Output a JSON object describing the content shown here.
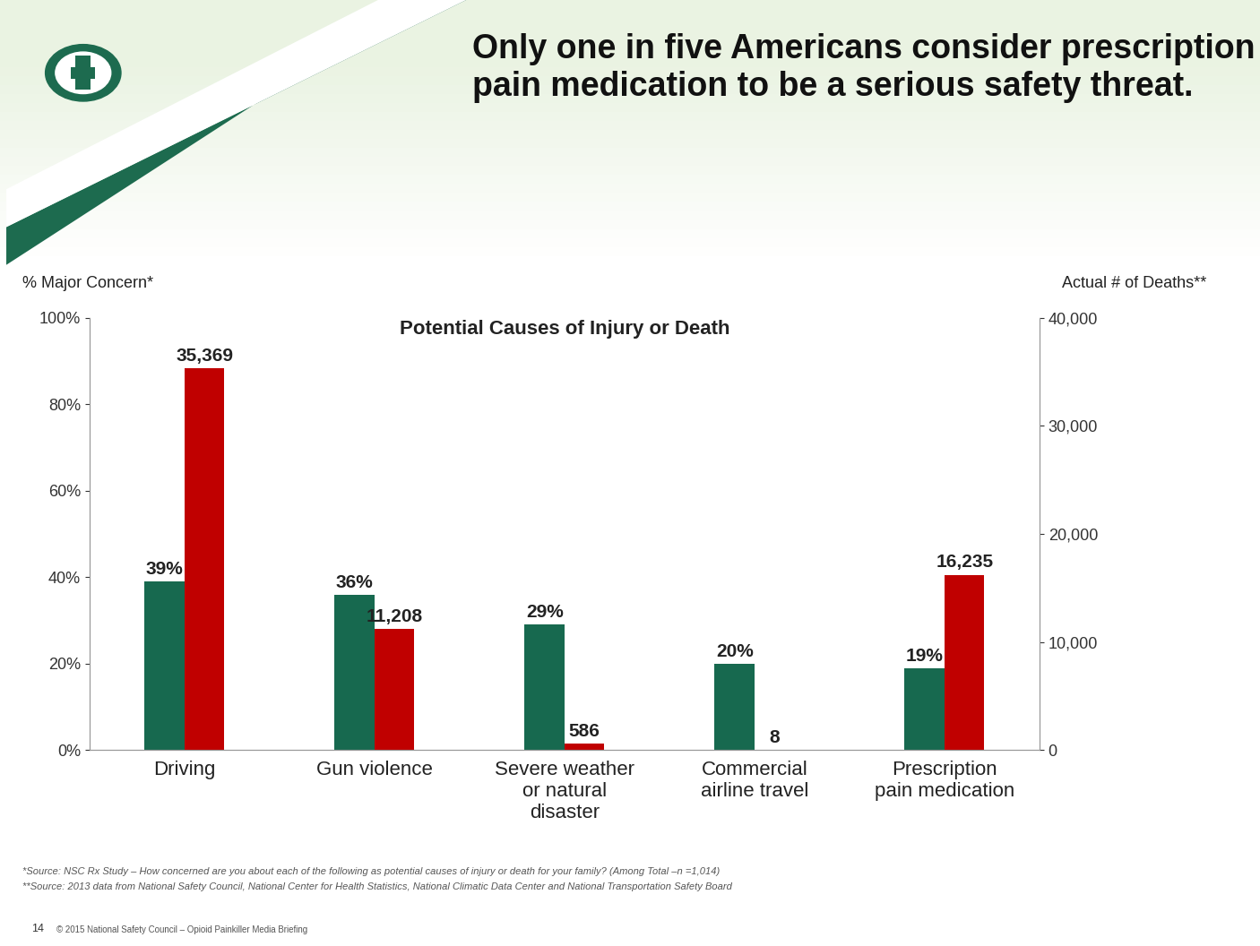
{
  "chart_data": {
    "type": "bar",
    "title": "Only one in five Americans consider prescription pain medication to be a serious safety threat.",
    "subtitle": "Potential Causes of Injury or Death",
    "y_label": "% Major Concern*",
    "y2_label": "Actual # of Deaths**",
    "categories": [
      "Driving",
      "Gun violence",
      "Severe weather or natural disaster",
      "Commercial airline travel",
      "Prescription pain medication"
    ],
    "series": [
      {
        "color": "#17694f",
        "values": [
          39,
          36,
          29,
          20,
          19
        ],
        "value_labels": [
          "39%",
          "36%",
          "29%",
          "20%",
          "19%"
        ]
      },
      {
        "color": "#c00000",
        "axis": "y2",
        "values": [
          35369,
          11208,
          586,
          8,
          16235
        ],
        "value_labels": [
          "35,369",
          "11,208",
          "586",
          "8",
          "16,235"
        ]
      }
    ],
    "ylim": [
      0,
      100
    ],
    "yticks": [
      {
        "value": 0,
        "label": "0%"
      },
      {
        "value": 20,
        "label": "20%"
      },
      {
        "value": 40,
        "label": "40%"
      },
      {
        "value": 60,
        "label": "60%"
      },
      {
        "value": 80,
        "label": "80%"
      },
      {
        "value": 100,
        "label": "100%"
      }
    ],
    "y2lim": [
      0,
      40000
    ],
    "y2ticks": [
      0,
      {
        "value": 10000,
        "label": "10,000"
      },
      {
        "value": 20000,
        "label": "20,000"
      },
      {
        "value": 30000,
        "label": "30,000"
      },
      {
        "value": 40000,
        "label": "40,000"
      }
    ],
    "grid": false,
    "data_labels": true,
    "footnotes": [
      "*Source: NSC Rx Study – How concerned are you about each of the following as potential causes of injury or death for your family? (Among Total –n =1,014)",
      "**Source: 2013 data from National Safety Council, National Center for Health Statistics, National Climatic Data Center and National Transportation Safety Board"
    ],
    "page_number": "14",
    "copyright": "© 2015 National Safety Council – Opioid Painkiller Media Briefing"
  }
}
